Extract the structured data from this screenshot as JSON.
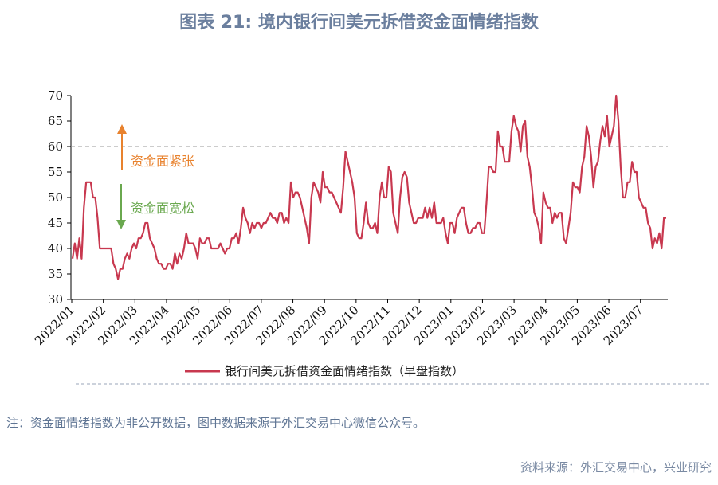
{
  "title": "图表 21: 境内银行间美元拆借资金面情绪指数",
  "note": "注：资金面情绪指数为非公开数据，图中数据来源于外汇交易中心微信公众号。",
  "source": "资料来源：外汇交易中心，兴业研究",
  "annotations": {
    "tight": "资金面紧张",
    "loose": "资金面宽松"
  },
  "colors": {
    "series": "#c8384f",
    "tight_arrow": "#e8822e",
    "loose_arrow": "#6aa84f",
    "reference_line": "#9a9a9a"
  },
  "chart_data": {
    "type": "line",
    "ylim": [
      30,
      70
    ],
    "yticks": [
      30,
      35,
      40,
      45,
      50,
      55,
      60,
      65,
      70
    ],
    "xticks": [
      "2022/01",
      "2022/02",
      "2022/03",
      "2022/04",
      "2022/05",
      "2022/06",
      "2022/07",
      "2022/08",
      "2022/09",
      "2022/10",
      "2022/11",
      "2022/12",
      "2023/01",
      "2023/02",
      "2023/03",
      "2023/04",
      "2023/05",
      "2023/06",
      "2023/07"
    ],
    "reference_line": 60,
    "legend_position": "bottom",
    "series": [
      {
        "name": "银行间美元拆借资金面情绪指数（早盘指数）",
        "x_start": "2022/01",
        "x_end": "2023/07 (late)",
        "values": [
          38,
          41,
          38,
          42,
          38,
          48,
          53,
          53,
          53,
          50,
          50,
          46,
          40,
          40,
          40,
          40,
          40,
          40,
          37,
          36,
          34,
          36,
          36,
          38,
          39,
          38,
          40,
          41,
          40,
          42,
          42,
          43,
          45,
          45,
          42,
          41,
          40,
          38,
          37,
          37,
          36,
          36,
          37,
          37,
          36,
          39,
          37,
          39,
          38,
          40,
          43,
          41,
          41,
          41,
          40,
          38,
          42,
          41,
          41,
          42,
          42,
          40,
          40,
          40,
          40,
          41,
          40,
          39,
          40,
          40,
          42,
          42,
          43,
          41,
          44,
          48,
          46,
          45,
          43,
          45,
          44,
          45,
          45,
          44,
          45,
          45,
          46,
          47,
          46,
          46,
          45,
          47,
          47,
          45,
          46,
          45,
          53,
          50,
          51,
          51,
          50,
          48,
          46,
          44,
          41,
          50,
          53,
          52,
          51,
          49,
          55,
          52,
          52,
          51,
          51,
          50,
          49,
          48,
          47,
          52,
          59,
          57,
          55,
          53,
          50,
          43,
          42,
          42,
          45,
          49,
          45,
          44,
          44,
          45,
          43,
          50,
          53,
          50,
          50,
          56,
          55,
          47,
          45,
          43,
          50,
          54,
          55,
          54,
          49,
          47,
          45,
          45,
          46,
          46,
          46,
          48,
          46,
          48,
          46,
          49,
          45,
          45,
          45,
          46,
          43,
          41,
          45,
          45,
          43,
          46,
          47,
          48,
          48,
          45,
          43,
          43,
          44,
          44,
          45,
          45,
          43,
          43,
          49,
          56,
          56,
          55,
          55,
          63,
          60,
          60,
          57,
          57,
          57,
          63,
          66,
          64,
          63,
          59,
          64,
          65,
          58,
          56,
          52,
          47,
          46,
          44,
          41,
          51,
          49,
          48,
          48,
          45,
          47,
          46,
          47,
          47,
          42,
          41,
          44,
          47,
          53,
          52,
          52,
          51,
          56,
          58,
          64,
          62,
          58,
          52,
          56,
          57,
          61,
          64,
          62,
          66,
          60,
          62,
          64,
          70,
          65,
          56,
          50,
          50,
          53,
          53,
          57,
          55,
          55,
          50,
          49,
          48,
          48,
          45,
          44,
          40,
          42,
          41,
          43,
          40,
          46,
          46
        ]
      }
    ]
  }
}
